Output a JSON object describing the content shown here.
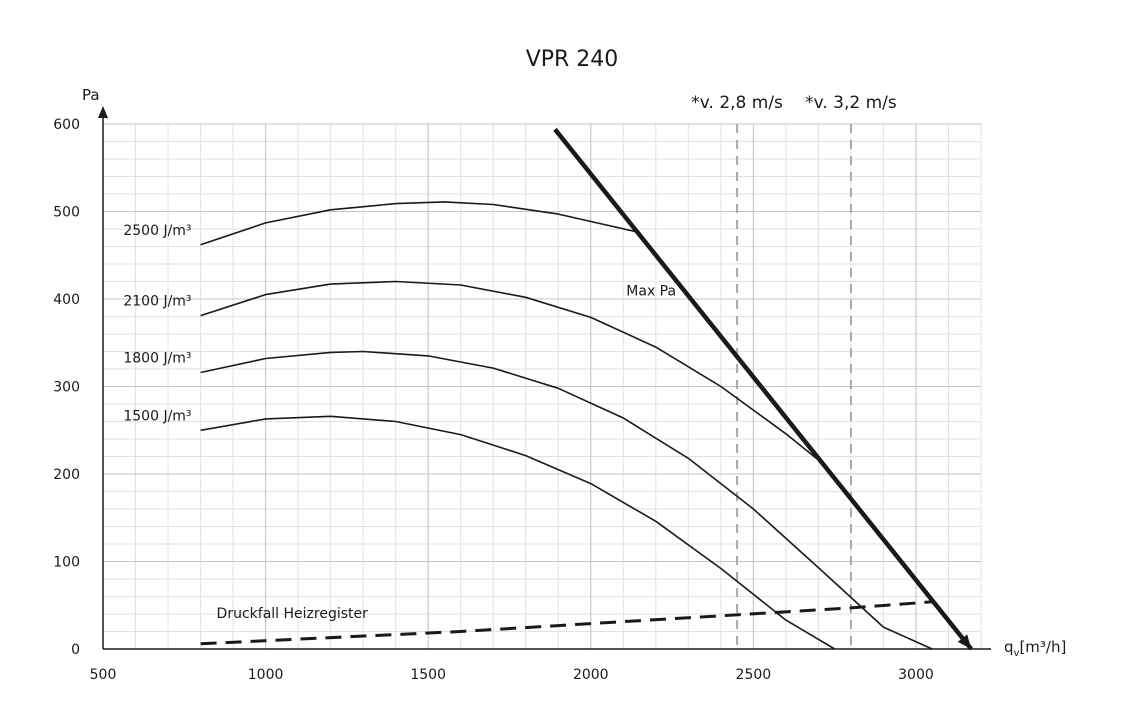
{
  "chart_data": {
    "type": "line",
    "title": "VPR 240",
    "ylabel": "Pa",
    "xlabel_prefix": "q",
    "xlabel_sub": "v",
    "xlabel_suffix": "[m³/h]",
    "xlim": [
      500,
      3200
    ],
    "ylim": [
      0,
      600
    ],
    "x_ticks": [
      500,
      1000,
      1500,
      2000,
      2500,
      3000
    ],
    "x_tick_labels": [
      "500",
      "1000",
      "1500",
      "2000",
      "2500",
      "3000"
    ],
    "y_ticks": [
      0,
      100,
      200,
      300,
      400,
      500,
      600
    ],
    "y_tick_labels": [
      "0",
      "100",
      "200",
      "300",
      "400",
      "500",
      "600"
    ],
    "grid": true,
    "series": [
      {
        "name": "2500 J/m³",
        "style": "thin",
        "x": [
          800,
          1000,
          1200,
          1400,
          1550,
          1700,
          1900,
          2150
        ],
        "y": [
          462,
          487,
          502,
          509,
          511,
          508,
          497,
          476
        ]
      },
      {
        "name": "2100 J/m³",
        "style": "thin",
        "x": [
          800,
          1000,
          1200,
          1400,
          1600,
          1800,
          2000,
          2200,
          2400,
          2600,
          2700
        ],
        "y": [
          381,
          405,
          417,
          420,
          416,
          402,
          379,
          345,
          300,
          246,
          216
        ]
      },
      {
        "name": "1800 J/m³",
        "style": "thin",
        "x": [
          800,
          1000,
          1200,
          1300,
          1500,
          1700,
          1900,
          2100,
          2300,
          2500,
          2700,
          2900,
          3050
        ],
        "y": [
          316,
          332,
          339,
          340,
          335,
          321,
          298,
          264,
          218,
          160,
          93,
          25,
          0
        ]
      },
      {
        "name": "1500 J/m³",
        "style": "thin",
        "x": [
          800,
          1000,
          1200,
          1400,
          1600,
          1800,
          2000,
          2200,
          2400,
          2600,
          2750
        ],
        "y": [
          250,
          263,
          266,
          260,
          245,
          221,
          189,
          146,
          92,
          33,
          0
        ]
      },
      {
        "name": "Max Pa",
        "style": "thick",
        "x": [
          1890,
          3170
        ],
        "y": [
          594,
          0
        ]
      },
      {
        "name": "Druckfall Heizregister",
        "style": "dashed",
        "x": [
          800,
          1200,
          1600,
          2000,
          2400,
          2800,
          3050
        ],
        "y": [
          6,
          13,
          20,
          29,
          38,
          47,
          54
        ]
      }
    ],
    "reference_lines": [
      {
        "label": "*v. 2,8 m/s",
        "x": 2450
      },
      {
        "label": "*v. 3,2 m/s",
        "x": 2800
      }
    ],
    "annotations": [
      {
        "text": "2500 J/m³",
        "series": 0
      },
      {
        "text": "2100 J/m³",
        "series": 1
      },
      {
        "text": "1800 J/m³",
        "series": 2
      },
      {
        "text": "1500 J/m³",
        "series": 3
      },
      {
        "text": "Max Pa",
        "series": 4
      },
      {
        "text": "Druckfall Heizregister",
        "series": 5
      }
    ]
  },
  "colors": {
    "line": "#1a1a1a",
    "grid_major": "#c4c4c4",
    "grid_minor": "#e2e2e2",
    "reference": "#a8a8a8"
  }
}
